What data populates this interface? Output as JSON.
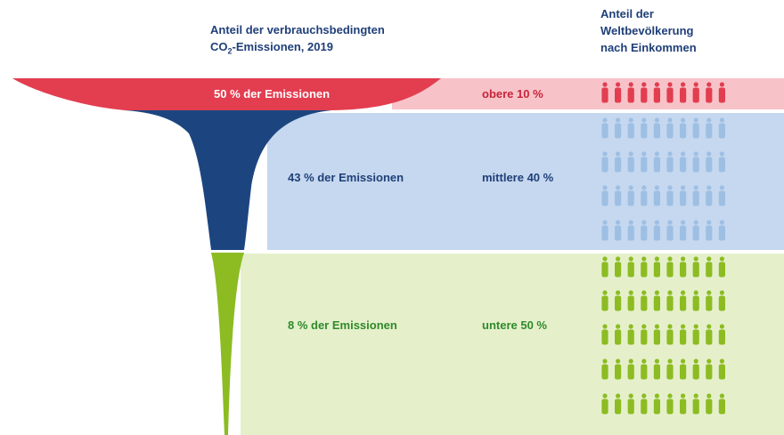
{
  "chart_data": {
    "type": "funnel",
    "title_emissions": {
      "line1": "Anteil der verbrauchsbedingten",
      "co": "CO",
      "sub": "2",
      "rest": "-Emissionen, 2019"
    },
    "title_population": [
      "Anteil der",
      "Weltbevölkerung",
      "nach Einkommen"
    ],
    "segments": [
      {
        "name": "top",
        "emission_label": "50 % der Emissionen",
        "group_label": "obere 10 %",
        "emission_share": 50,
        "population_share": 10,
        "person_rows": 1
      },
      {
        "name": "middle",
        "emission_label": "43 % der Emissionen",
        "group_label": "mittlere 40 %",
        "emission_share": 43,
        "population_share": 40,
        "person_rows": 4
      },
      {
        "name": "bottom",
        "emission_label": "8 % der Emissionen",
        "group_label": "untere 50 %",
        "emission_share": 8,
        "population_share": 50,
        "person_rows": 5
      }
    ],
    "persons_per_row": 10
  },
  "colors": {
    "top_dark": "#e33d50",
    "top_light": "#f7c3c9",
    "middle_dark": "#1c4580",
    "middle_light": "#c5d8ef",
    "middle_person": "#9ebfe4",
    "bottom_dark": "#8cbc22",
    "bottom_light": "#e5f0cb",
    "bottom_person": "#8cbc22",
    "heading": "#1f3f78"
  }
}
